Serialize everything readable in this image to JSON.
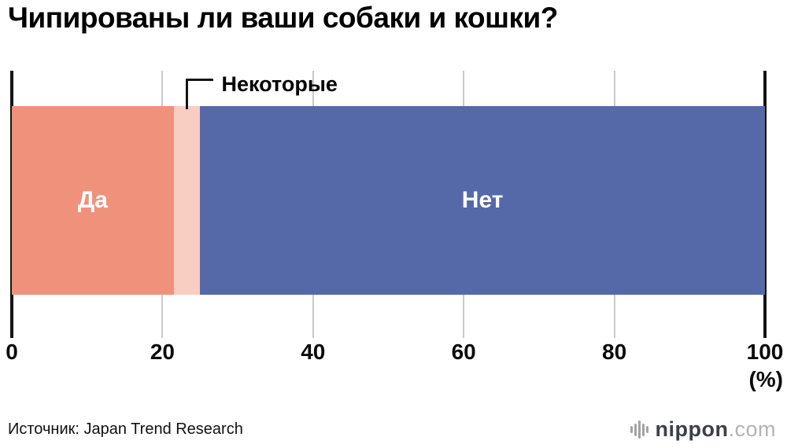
{
  "chart_data": {
    "type": "bar",
    "stacked": true,
    "orientation": "horizontal",
    "title": "Чипированы ли ваши собаки и кошки?",
    "categories": [
      "Да",
      "Некоторые",
      "Нет"
    ],
    "values": [
      21.5,
      3.5,
      75.0
    ],
    "colors": [
      "#F0927B",
      "#F8CDC2",
      "#5569A9"
    ],
    "label_inside": [
      true,
      false,
      true
    ],
    "annotation": {
      "label": "Некоторые",
      "target": "Некоторые"
    },
    "xlim": [
      0,
      100
    ],
    "ticks": [
      0,
      20,
      40,
      60,
      80,
      100
    ],
    "unit_label": "(%)",
    "grid": "vertical",
    "legend": "none"
  },
  "source": "Источник: Japan Trend Research",
  "logo": {
    "name": "nippon",
    "tld": ".com"
  },
  "style_colors": {
    "axis_edge": "#141414",
    "gridline": "#c9c9c9",
    "bar_label_text": "#ffffff"
  }
}
